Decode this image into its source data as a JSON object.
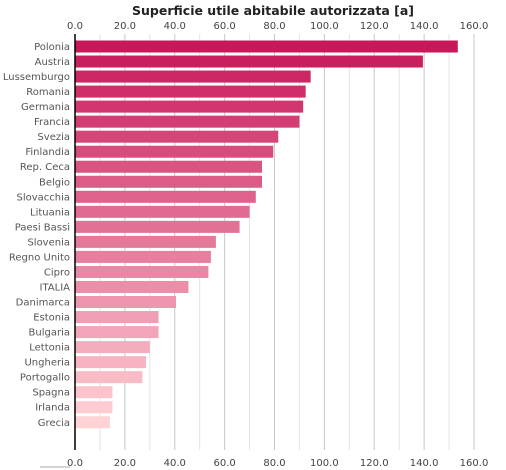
{
  "chart_data": {
    "type": "bar",
    "orientation": "horizontal",
    "title": "Superficie utile abitabile autorizzata [a]",
    "xlabel": "",
    "ylabel": "",
    "xlim": [
      0,
      160
    ],
    "ticks": [
      "0.0",
      "20.0",
      "40.0",
      "60.0",
      "80.0",
      "100.0",
      "120.0",
      "140.0",
      "160.0"
    ],
    "tick_values": [
      0,
      20,
      40,
      60,
      80,
      100,
      120,
      140,
      160
    ],
    "grid": true,
    "axis_labels_top_and_bottom": true,
    "categories": [
      "Polonia",
      "Austria",
      "Lussemburgo",
      "Romania",
      "Germania",
      "Francia",
      "Svezia",
      "Finlandia",
      "Rep. Ceca",
      "Belgio",
      "Slovacchia",
      "Lituania",
      "Paesi Bassi",
      "Slovenia",
      "Regno Unito",
      "Cipro",
      "ITALIA",
      "Danimarca",
      "Estonia",
      "Bulgaria",
      "Lettonia",
      "Ungheria",
      "Portogallo",
      "Spagna",
      "Irlanda",
      "Grecia"
    ],
    "values": [
      153.5,
      139.5,
      94.5,
      92.5,
      91.5,
      90,
      81.5,
      79.5,
      75,
      75,
      72.5,
      70,
      66,
      56.5,
      54.5,
      53.5,
      45.5,
      40.5,
      33.5,
      33.5,
      30,
      28.5,
      27,
      15,
      15,
      14
    ],
    "colors": {
      "darkest": "#c8185a",
      "lightest": "#ffd2d6",
      "grid": "#c8c8c8",
      "axis": "#000000",
      "title": "#222222"
    }
  }
}
